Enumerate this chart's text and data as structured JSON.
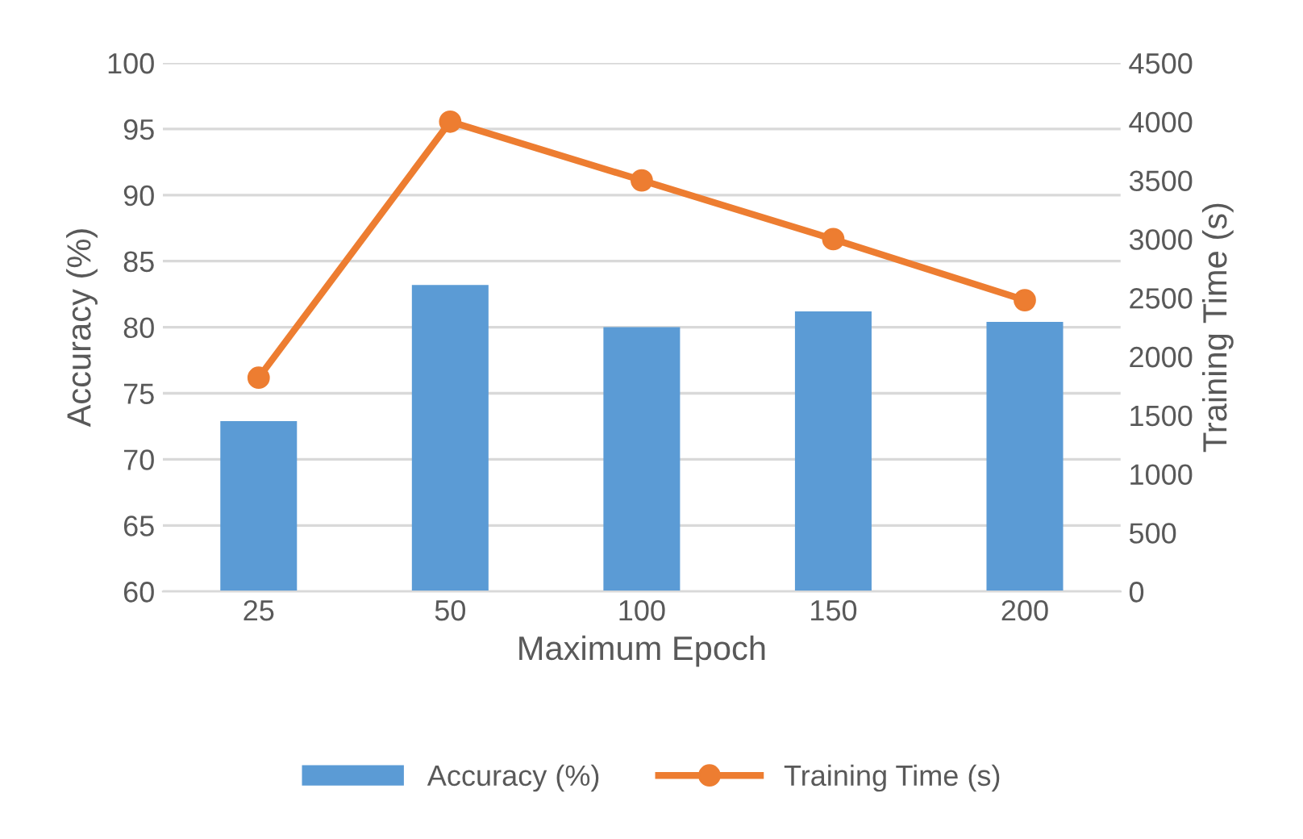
{
  "chart_data": {
    "type": "bar",
    "xlabel": "Maximum Epoch",
    "ylabel": "Accuracy (%)",
    "y2label": "Training Time (s)",
    "categories": [
      "25",
      "50",
      "100",
      "150",
      "200"
    ],
    "series": [
      {
        "name": "Accuracy (%)",
        "color": "#5b9bd5",
        "values": [
          72.9,
          83.2,
          80.0,
          81.2,
          80.4
        ]
      },
      {
        "name": "Training Time (s)",
        "type": "line",
        "axis": "y2",
        "color": "#ed7d31",
        "marker": "circle",
        "values": [
          1820,
          4000,
          3500,
          3000,
          2480
        ]
      }
    ],
    "ylim": [
      60,
      100
    ],
    "yticks": [
      60,
      65,
      70,
      75,
      80,
      85,
      90,
      95,
      100
    ],
    "y2lim": [
      0,
      4500
    ],
    "y2ticks": [
      0,
      500,
      1000,
      1500,
      2000,
      2500,
      3000,
      3500,
      4000,
      4500
    ],
    "grid": "y",
    "legend": "bottom"
  }
}
